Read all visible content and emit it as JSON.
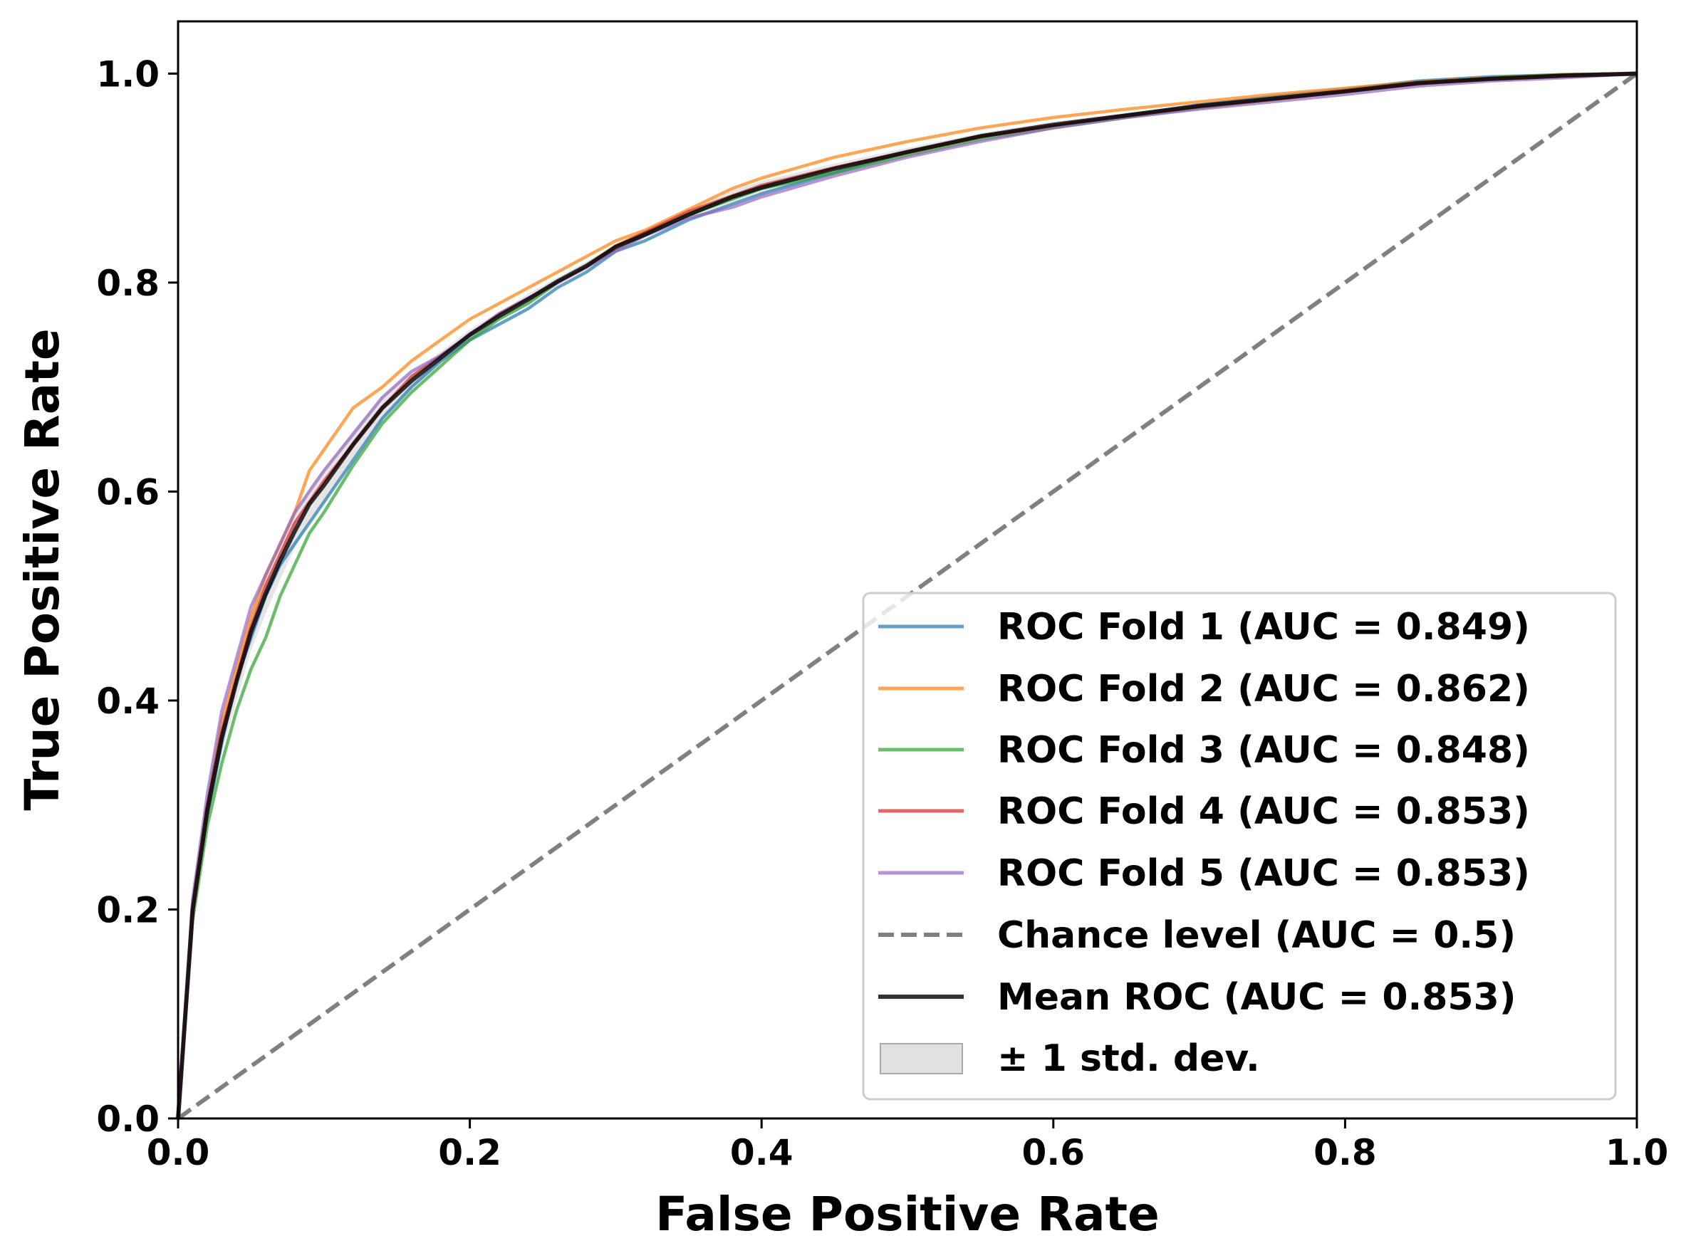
{
  "chart_data": {
    "type": "line",
    "title": "",
    "xlabel": "False Positive Rate",
    "ylabel": "True Positive Rate",
    "xlim": [
      0.0,
      1.0
    ],
    "ylim": [
      0.0,
      1.05
    ],
    "xticks": [
      "0.0",
      "0.2",
      "0.4",
      "0.6",
      "0.8",
      "1.0"
    ],
    "yticks": [
      "0.0",
      "0.2",
      "0.4",
      "0.6",
      "0.8",
      "1.0"
    ],
    "grid": false,
    "legend_position": "lower-right",
    "series": [
      {
        "name": "ROC Fold 1 (AUC = 0.849)",
        "color": "#1f77b4",
        "x": [
          0.0,
          0.01,
          0.02,
          0.03,
          0.04,
          0.05,
          0.06,
          0.07,
          0.08,
          0.09,
          0.1,
          0.12,
          0.14,
          0.16,
          0.18,
          0.2,
          0.22,
          0.24,
          0.26,
          0.28,
          0.3,
          0.32,
          0.35,
          0.38,
          0.4,
          0.45,
          0.5,
          0.55,
          0.6,
          0.65,
          0.7,
          0.75,
          0.8,
          0.85,
          0.9,
          0.95,
          1.0
        ],
        "y": [
          0.0,
          0.2,
          0.29,
          0.36,
          0.42,
          0.46,
          0.5,
          0.53,
          0.55,
          0.57,
          0.59,
          0.63,
          0.67,
          0.7,
          0.725,
          0.745,
          0.76,
          0.775,
          0.795,
          0.81,
          0.83,
          0.84,
          0.86,
          0.875,
          0.885,
          0.905,
          0.925,
          0.94,
          0.95,
          0.96,
          0.97,
          0.978,
          0.985,
          0.993,
          0.997,
          0.999,
          1.0
        ]
      },
      {
        "name": "ROC Fold 2 (AUC = 0.862)",
        "color": "#ff7f0e",
        "x": [
          0.0,
          0.01,
          0.02,
          0.03,
          0.04,
          0.05,
          0.06,
          0.07,
          0.08,
          0.09,
          0.1,
          0.12,
          0.14,
          0.16,
          0.18,
          0.2,
          0.22,
          0.24,
          0.26,
          0.28,
          0.3,
          0.32,
          0.35,
          0.38,
          0.4,
          0.45,
          0.5,
          0.55,
          0.6,
          0.65,
          0.7,
          0.75,
          0.8,
          0.85,
          0.9,
          0.95,
          1.0
        ],
        "y": [
          0.0,
          0.2,
          0.3,
          0.38,
          0.43,
          0.48,
          0.52,
          0.55,
          0.58,
          0.62,
          0.64,
          0.68,
          0.7,
          0.725,
          0.745,
          0.765,
          0.78,
          0.795,
          0.81,
          0.825,
          0.84,
          0.85,
          0.87,
          0.89,
          0.9,
          0.92,
          0.935,
          0.948,
          0.958,
          0.966,
          0.973,
          0.98,
          0.986,
          0.992,
          0.996,
          0.999,
          1.0
        ]
      },
      {
        "name": "ROC Fold 3 (AUC = 0.848)",
        "color": "#2ca02c",
        "x": [
          0.0,
          0.01,
          0.02,
          0.03,
          0.04,
          0.05,
          0.06,
          0.07,
          0.08,
          0.09,
          0.1,
          0.12,
          0.14,
          0.16,
          0.18,
          0.2,
          0.22,
          0.24,
          0.26,
          0.28,
          0.3,
          0.32,
          0.35,
          0.38,
          0.4,
          0.45,
          0.5,
          0.55,
          0.6,
          0.65,
          0.7,
          0.75,
          0.8,
          0.85,
          0.9,
          0.95,
          1.0
        ],
        "y": [
          0.0,
          0.19,
          0.28,
          0.34,
          0.39,
          0.43,
          0.46,
          0.5,
          0.53,
          0.56,
          0.58,
          0.625,
          0.665,
          0.695,
          0.72,
          0.745,
          0.765,
          0.78,
          0.8,
          0.815,
          0.835,
          0.845,
          0.865,
          0.88,
          0.89,
          0.905,
          0.922,
          0.937,
          0.948,
          0.958,
          0.967,
          0.975,
          0.983,
          0.99,
          0.996,
          0.999,
          1.0
        ]
      },
      {
        "name": "ROC Fold 4 (AUC = 0.853)",
        "color": "#d62728",
        "x": [
          0.0,
          0.01,
          0.02,
          0.03,
          0.04,
          0.05,
          0.06,
          0.07,
          0.08,
          0.09,
          0.1,
          0.12,
          0.14,
          0.16,
          0.18,
          0.2,
          0.22,
          0.24,
          0.26,
          0.28,
          0.3,
          0.32,
          0.35,
          0.38,
          0.4,
          0.45,
          0.5,
          0.55,
          0.6,
          0.65,
          0.7,
          0.75,
          0.8,
          0.85,
          0.9,
          0.95,
          1.0
        ],
        "y": [
          0.0,
          0.2,
          0.3,
          0.37,
          0.42,
          0.47,
          0.51,
          0.54,
          0.57,
          0.59,
          0.61,
          0.645,
          0.68,
          0.71,
          0.73,
          0.75,
          0.77,
          0.785,
          0.8,
          0.815,
          0.835,
          0.848,
          0.868,
          0.883,
          0.893,
          0.91,
          0.925,
          0.94,
          0.95,
          0.96,
          0.968,
          0.975,
          0.983,
          0.99,
          0.995,
          0.998,
          1.0
        ]
      },
      {
        "name": "ROC Fold 5 (AUC = 0.853)",
        "color": "#9467bd",
        "x": [
          0.0,
          0.01,
          0.02,
          0.03,
          0.04,
          0.05,
          0.06,
          0.07,
          0.08,
          0.09,
          0.1,
          0.12,
          0.14,
          0.16,
          0.18,
          0.2,
          0.22,
          0.24,
          0.26,
          0.28,
          0.3,
          0.32,
          0.35,
          0.38,
          0.4,
          0.45,
          0.5,
          0.55,
          0.6,
          0.65,
          0.7,
          0.75,
          0.8,
          0.85,
          0.9,
          0.95,
          1.0
        ],
        "y": [
          0.0,
          0.21,
          0.31,
          0.39,
          0.44,
          0.49,
          0.52,
          0.55,
          0.58,
          0.6,
          0.62,
          0.655,
          0.69,
          0.715,
          0.73,
          0.75,
          0.77,
          0.785,
          0.8,
          0.815,
          0.83,
          0.845,
          0.862,
          0.872,
          0.882,
          0.902,
          0.92,
          0.935,
          0.948,
          0.958,
          0.966,
          0.973,
          0.98,
          0.988,
          0.993,
          0.996,
          1.0
        ]
      },
      {
        "name": "Chance level (AUC = 0.5)",
        "color": "#808080",
        "dashed": true,
        "x": [
          0.0,
          1.0
        ],
        "y": [
          0.0,
          1.0
        ]
      },
      {
        "name": "Mean ROC (AUC = 0.853)",
        "color": "#000000",
        "x": [
          0.0,
          0.01,
          0.02,
          0.03,
          0.04,
          0.05,
          0.06,
          0.07,
          0.08,
          0.09,
          0.1,
          0.12,
          0.14,
          0.16,
          0.18,
          0.2,
          0.22,
          0.24,
          0.26,
          0.28,
          0.3,
          0.32,
          0.35,
          0.38,
          0.4,
          0.45,
          0.5,
          0.55,
          0.6,
          0.65,
          0.7,
          0.75,
          0.8,
          0.85,
          0.9,
          0.95,
          1.0
        ],
        "y": [
          0.0,
          0.2,
          0.295,
          0.365,
          0.418,
          0.466,
          0.502,
          0.534,
          0.562,
          0.588,
          0.606,
          0.645,
          0.68,
          0.706,
          0.728,
          0.75,
          0.768,
          0.784,
          0.801,
          0.816,
          0.834,
          0.846,
          0.865,
          0.882,
          0.891,
          0.909,
          0.925,
          0.94,
          0.951,
          0.96,
          0.969,
          0.976,
          0.983,
          0.991,
          0.995,
          0.998,
          1.0
        ]
      }
    ],
    "std_band": {
      "name": "± 1 std. dev.",
      "color": "#bdbdbd",
      "x": [
        0.0,
        0.01,
        0.02,
        0.03,
        0.04,
        0.05,
        0.06,
        0.07,
        0.08,
        0.09,
        0.1,
        0.12,
        0.14,
        0.16,
        0.18,
        0.2,
        0.22,
        0.24,
        0.26,
        0.28,
        0.3,
        0.32,
        0.35,
        0.38,
        0.4,
        0.45,
        0.5,
        0.55,
        0.6,
        0.65,
        0.7,
        0.75,
        0.8,
        0.85,
        0.9,
        0.95,
        1.0
      ],
      "lower": [
        0.0,
        0.195,
        0.285,
        0.35,
        0.4,
        0.448,
        0.483,
        0.516,
        0.546,
        0.572,
        0.59,
        0.632,
        0.668,
        0.698,
        0.722,
        0.745,
        0.764,
        0.779,
        0.797,
        0.812,
        0.831,
        0.843,
        0.862,
        0.876,
        0.885,
        0.904,
        0.921,
        0.937,
        0.948,
        0.958,
        0.967,
        0.975,
        0.982,
        0.989,
        0.994,
        0.997,
        1.0
      ],
      "upper": [
        0.0,
        0.205,
        0.305,
        0.38,
        0.436,
        0.484,
        0.521,
        0.552,
        0.578,
        0.604,
        0.622,
        0.658,
        0.692,
        0.714,
        0.734,
        0.755,
        0.772,
        0.789,
        0.805,
        0.82,
        0.837,
        0.849,
        0.868,
        0.888,
        0.897,
        0.914,
        0.929,
        0.943,
        0.954,
        0.962,
        0.971,
        0.977,
        0.984,
        0.993,
        0.996,
        0.999,
        1.0
      ]
    }
  }
}
